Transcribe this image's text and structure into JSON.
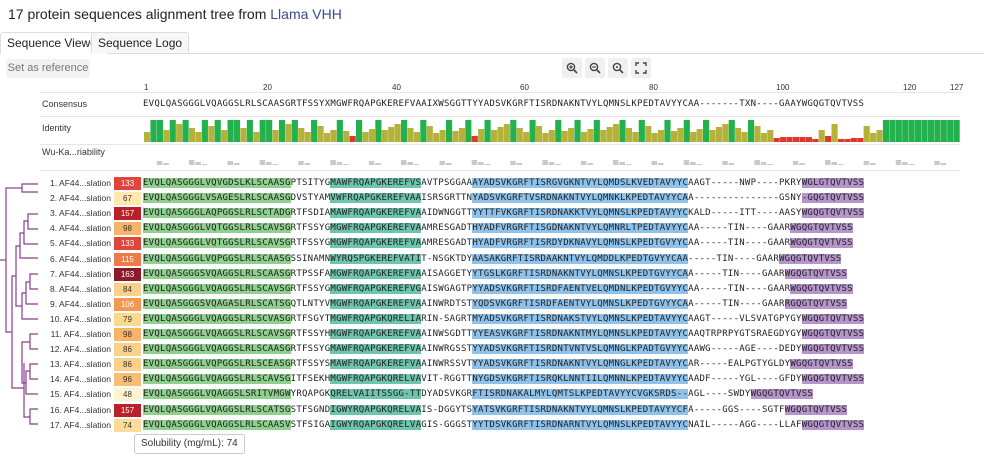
{
  "title_main": "17 protein sequences alignment tree from ",
  "title_accent": "Llama VHH",
  "tabs": [
    "Sequence Viewer",
    "Sequence Logo"
  ],
  "set_reference_label": "Set as reference",
  "zoom_buttons": [
    "zoom-in",
    "zoom-out",
    "zoom-fit",
    "expand"
  ],
  "ruler_ticks": [
    "1",
    "20",
    "40",
    "60",
    "80",
    "100",
    "120",
    "127"
  ],
  "tracks": {
    "consensus": "Consensus",
    "identity": "Identity",
    "variability": "Wu-Ka...riability"
  },
  "consensus": "EVQLQASGGGLVQAGGSLRLSCAASGRTFSSYXMGWFRQAPGKEREFVAAIXWSGGTTYYADSVKGRFTISRDNAKNTVYLQMNSLKPEDTAVYYCAA-------TXN----GAAYWGQGTQVTVSS",
  "sequences": [
    {
      "name": "1. AF44...slation",
      "sol": "133",
      "color": "#e0443a",
      "seq": "EVQLQASGGGLVQVGDSLKLSCAASGPTSITYGMAWFRQAPGKEREFVSAVTPSGGAAAYADSVKGRFTISRGVGKNTVYLQMDSLKVEDTAVYYCAAGT-----NWP----PKRYWGLGTQVTVSS"
    },
    {
      "name": "2. AF44...slation",
      "sol": "67",
      "color": "#fde8ae",
      "seq": "EVQLQASGGGLVSAGESLRLSCAASGDVSTYAMVWFRQAPGKEREFVAAISRSGRTTNYADSVKGRFTVSRDNAKNTVYLQMNKLKPEDTAVYYCAA---------------GSNY-GQGTQVTVSS"
    },
    {
      "name": "3. AF44...slation",
      "sol": "157",
      "color": "#b8202a",
      "seq": "EVQLQASGGGLAQPGGSLRLSCTADGRTFSDIAMAWFRQAPGKEREFVAAIDWNGGTTYYTTFVKGRFTISRDNAKKTVYLQMNSLKPEDTAVYYCKALD-----ITT----AASYWGQGTQVTVSS"
    },
    {
      "name": "4. AF44...slation",
      "sol": "98",
      "color": "#f8b468",
      "seq": "EVQLQASGGGLVQTGGSLRLSCAVSGRTFSSYGMGWFRQAPGKEREFVAAMRESGADTHYADFVRGRFTISGDNAKNTVYLQMNRLTPEDTAVYYCAA-----TIN----GAARWGQGTQVTVSS"
    },
    {
      "name": "5. AF44...slation",
      "sol": "133",
      "color": "#e0443a",
      "seq": "EVQLQASGGGLVQTGGSLRLSCAVSGRTFSSYGMGWFRQAPGKEREFVAAMRESGADTHYADFVRGRFTISRDYDKNAVYLQMNSLKPEDTGVYYCAA-----TIN----GAARWGQGTQVTVSS"
    },
    {
      "name": "6. AF44...slation",
      "sol": "115",
      "color": "#ee7a4a",
      "seq": "EVQLQASGGGLVQPGGSLRLSCAASGSSINAMNWYRQSPGKEREFVATIT-NSGKTDYAASAKGRFTISRDAAKNTVYLQMDDLKPEDTGVYYCAA-----TIN----GAARWGQGTQVTVSS"
    },
    {
      "name": "7. AF44...slation",
      "sol": "163",
      "color": "#8b1a2a",
      "seq": "EVQLQASGGGSVQAGGSLRLSCAASGRTPSSFAMGWFRQAPGKEREFVAAISAGGETYYTGSLKGRFTISRDNAKNTVYLQMNSLKPEDTGVYYCAA-----TIN----GAARWGQGTQVTVSS"
    },
    {
      "name": "8. AF44...slation",
      "sol": "84",
      "color": "#fbd08a",
      "seq": "EVQLQASGGGLVQAGGSLRLSCAVSGRTFSSYGMGWFRQAPGKEREFVGAISWGAGTPYYADSVKGRFTISRDFAENTVELQMDNLKPEDTGVYYCAA-----TIN----GAARWGQGTQVTVSS"
    },
    {
      "name": "9. AF44...slation",
      "sol": "106",
      "color": "#f4984f",
      "seq": "EVQLQASGGGSVQAGASLRLSCATSGQTLNTYVMGWFRQAPGKEREFVAAINWRDTSTYQDSVKGRFTISRDFAENTVYLQMNSLKPEDTGVYYCAA-----TIN----GAARRGQGTQVTVSS"
    },
    {
      "name": "10. AF4...slation",
      "sol": "79",
      "color": "#fbd98f",
      "seq": "EVQLQASGGGLVQAGGSLRLSCVASGRTFSGYTMGWFRQAPGKQRELIARIN-SAGRTMYADSVKGRFTISRDNAKSTVYLQMNSLKPEDTAVYYCAAGT-----VLSVATGPYGYWGQGTQVTVSS"
    },
    {
      "name": "11. AF4...slation",
      "sol": "98",
      "color": "#f8b468",
      "seq": "EVQLQASGGGLVQAGGSLRLSCAVSGRTFSSYHMGWFRQAPGKEREFVAAINWSGDTTYYEASVKGRFTISRDNAKNTMYLQMNSLKPEDTAVYYCAAQTRPRPYGTSRAEGDYGYWGQGTQVTVSS"
    },
    {
      "name": "12. AF4...slation",
      "sol": "86",
      "color": "#fbd08a",
      "seq": "EVQLQASGGGLVQAGGSLRLSCAASGRTFSSYGMAWFRQAPGKEREFVAAINWRGSSTYYADSVKGRFTISRDNTVNTVSLQMNGLKPADTGVYYCAAWG-----AGE----DEDYWGQGTQVTVSS"
    },
    {
      "name": "13. AF4...slation",
      "sol": "86",
      "color": "#fbd08a",
      "seq": "EVQLQASGGGLVQPGGSLRLSCEASGRTFSSYSMAWFRQAPGKEREFVAAINWRSSVTYYADSVKGRFTISRDNAKNTVYLQMNGLKPEDTAVYYCAR-----EALPGTYGLDYWGQGTQVTVSS"
    },
    {
      "name": "14. AF4...slation",
      "sol": "96",
      "color": "#f8bd72",
      "seq": "EVQLQASGGGLVQAGGSLRLSCAVSGITFSEKHMGWFRQAPGKQRELVAVIT-RGGTTNYGDSVKGRFTISRQKLNNTIILQMNNLKPEDTAVYYCAADF-----YGL----GFDYWGQGTQVTVSS"
    },
    {
      "name": "15. AF4...slation",
      "sol": "48",
      "color": "#fef4cf",
      "seq": "EVQLQASGGGLVQAGGSLSRITVMGWYRQAPGKQRELVAIITSSGG-TTDYADSVKGRFTISRDNAKALMYLQMTSLKPEDTAVYYCVGKSRDS--AGL----SWDYWGQGTQVTVSS"
    },
    {
      "name": "16. AF4...slation",
      "sol": "157",
      "color": "#b8202a",
      "seq": "EVQLQASGGGLVQAGGSLRLSCATSGSTFSGNDIGWYRQAPGKQRELVAIS-DGGYTSYATSVKGRFTISRDNAKNTVYLQMNSLKPEDTAVYYCFA-----GGS----SGTFWGQGTQVTVSS"
    },
    {
      "name": "17. AF4...slation",
      "sol": "74",
      "color": "#fcdc98",
      "seq": "EVQLQASGGGLVQAGGSLRLSCAASVSTFSIGAIGWYRQAPGKQRELVAGIS-GGGSTYYTDSVKGRFTISRDNARNTVYLQMNSLKPEDTAVYYCNAIL-----AGG----LLAFWGQGTQVTVSS"
    }
  ],
  "tooltip": "Solubility (mg/mL): 74"
}
